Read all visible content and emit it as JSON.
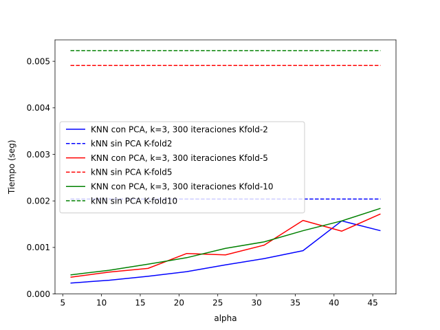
{
  "chart_data": {
    "type": "line",
    "title": "",
    "xlabel": "alpha",
    "ylabel": "Tiempo (seg)",
    "xlim": [
      4.0,
      48.0
    ],
    "ylim": [
      0.0,
      0.00546
    ],
    "x_ticks": [
      5,
      10,
      15,
      20,
      25,
      30,
      35,
      40,
      45
    ],
    "x_tick_labels": [
      "5",
      "10",
      "15",
      "20",
      "25",
      "30",
      "35",
      "40",
      "45"
    ],
    "y_ticks": [
      0.0,
      0.001,
      0.002,
      0.003,
      0.004,
      0.005
    ],
    "y_tick_labels": [
      "0.000",
      "0.001",
      "0.002",
      "0.003",
      "0.004",
      "0.005"
    ],
    "grid": false,
    "legend_position": "center-left",
    "x": [
      6,
      11,
      16,
      21,
      26,
      31,
      36,
      41,
      46
    ],
    "series": [
      {
        "name": "KNN con PCA, k=3, 300 iteraciones Kfold-2",
        "color": "#0000ff",
        "dash": "solid",
        "values": [
          0.000235,
          0.000295,
          0.00038,
          0.00048,
          0.000625,
          0.00076,
          0.00093,
          0.00157,
          0.00136
        ]
      },
      {
        "name": "kNN sin PCA K-fold2",
        "color": "#0000ff",
        "dash": "dashed",
        "values": [
          0.00204,
          0.00204,
          0.00204,
          0.00204,
          0.00204,
          0.00204,
          0.00204,
          0.00204,
          0.00204
        ]
      },
      {
        "name": "KNN con PCA, k=3, 300 iteraciones Kfold-5",
        "color": "#ff0000",
        "dash": "solid",
        "values": [
          0.00036,
          0.00047,
          0.00055,
          0.00087,
          0.00084,
          0.00105,
          0.00158,
          0.00135,
          0.00172
        ]
      },
      {
        "name": "kNN sin PCA K-fold5",
        "color": "#ff0000",
        "dash": "dashed",
        "values": [
          0.00491,
          0.00491,
          0.00491,
          0.00491,
          0.00491,
          0.00491,
          0.00491,
          0.00491,
          0.00491
        ]
      },
      {
        "name": "KNN con PCA, k=3, 300 iteraciones Kfold-10",
        "color": "#008000",
        "dash": "solid",
        "values": [
          0.00041,
          0.00051,
          0.00064,
          0.00078,
          0.00098,
          0.00112,
          0.00136,
          0.00157,
          0.00184
        ]
      },
      {
        "name": "kNN sin PCA K-fold10",
        "color": "#008000",
        "dash": "dashed",
        "values": [
          0.00523,
          0.00523,
          0.00523,
          0.00523,
          0.00523,
          0.00523,
          0.00523,
          0.00523,
          0.00523
        ]
      }
    ]
  }
}
